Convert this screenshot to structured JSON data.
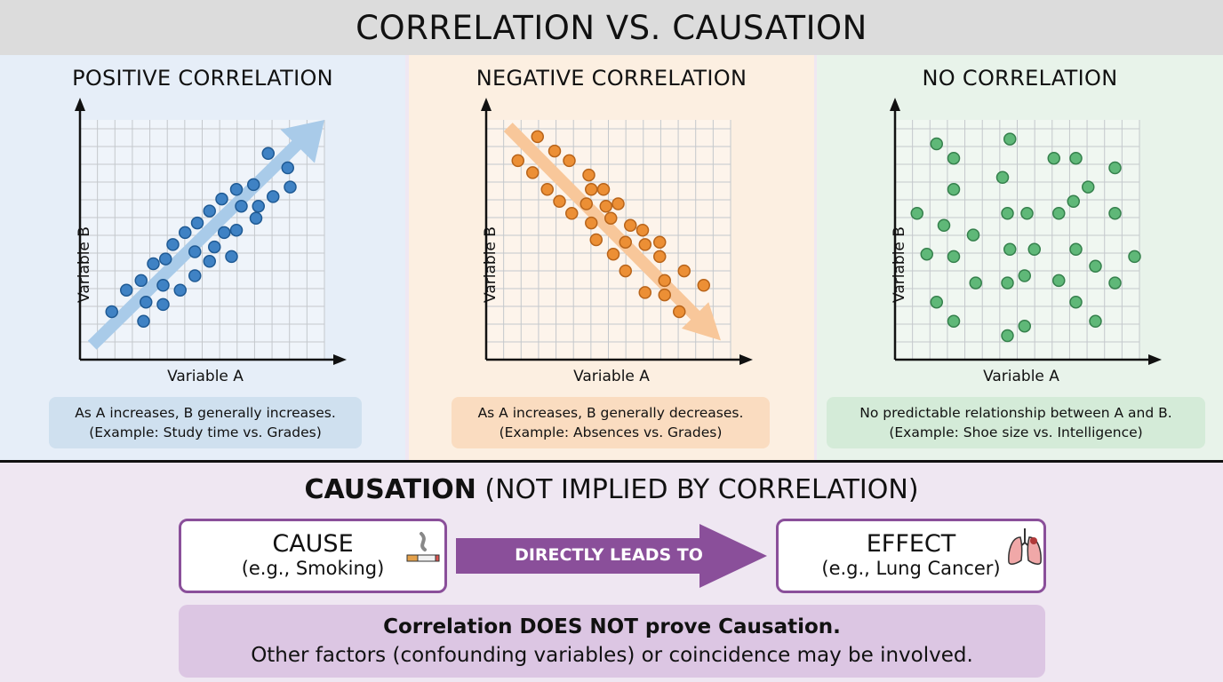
{
  "title": "CORRELATION VS. CAUSATION",
  "colors": {
    "positive": "#3f82c4",
    "negative": "#ec8f35",
    "none": "#5fb878",
    "purple": "#8a4f9a"
  },
  "chart_data": [
    {
      "type": "scatter",
      "title": "POSITIVE CORRELATION",
      "xlabel": "Variable A",
      "ylabel": "Variable B",
      "xlim": [
        0,
        10
      ],
      "ylim": [
        0,
        10
      ],
      "grid": true,
      "trend": "up",
      "points": [
        [
          1.3,
          2.0
        ],
        [
          1.9,
          2.9
        ],
        [
          2.5,
          3.3
        ],
        [
          2.7,
          2.4
        ],
        [
          2.6,
          1.6
        ],
        [
          3.0,
          4.0
        ],
        [
          3.4,
          3.1
        ],
        [
          3.4,
          2.3
        ],
        [
          3.5,
          4.2
        ],
        [
          3.8,
          4.8
        ],
        [
          4.1,
          2.9
        ],
        [
          4.3,
          5.3
        ],
        [
          4.7,
          3.5
        ],
        [
          4.8,
          5.7
        ],
        [
          4.7,
          4.5
        ],
        [
          5.3,
          6.2
        ],
        [
          5.3,
          4.1
        ],
        [
          5.5,
          4.7
        ],
        [
          5.8,
          6.7
        ],
        [
          5.9,
          5.3
        ],
        [
          6.4,
          7.1
        ],
        [
          6.4,
          5.4
        ],
        [
          6.6,
          6.4
        ],
        [
          7.1,
          7.3
        ],
        [
          7.3,
          6.4
        ],
        [
          7.2,
          5.9
        ],
        [
          7.7,
          8.6
        ],
        [
          7.9,
          6.8
        ],
        [
          8.5,
          8.0
        ],
        [
          8.6,
          7.2
        ],
        [
          6.2,
          4.3
        ]
      ],
      "caption": [
        "As A increases, B generally increases.",
        "(Example: Study time vs. Grades)"
      ]
    },
    {
      "type": "scatter",
      "title": "NEGATIVE CORRELATION",
      "xlabel": "Variable A",
      "ylabel": "Variable B",
      "xlim": [
        0,
        10
      ],
      "ylim": [
        0,
        10
      ],
      "grid": true,
      "trend": "down",
      "points": [
        [
          2.1,
          9.3
        ],
        [
          1.3,
          8.3
        ],
        [
          1.9,
          7.8
        ],
        [
          2.8,
          8.7
        ],
        [
          2.5,
          7.1
        ],
        [
          3.0,
          6.6
        ],
        [
          3.4,
          8.3
        ],
        [
          3.5,
          6.1
        ],
        [
          4.1,
          6.5
        ],
        [
          4.2,
          7.7
        ],
        [
          4.3,
          7.1
        ],
        [
          4.8,
          7.1
        ],
        [
          4.9,
          6.4
        ],
        [
          4.3,
          5.7
        ],
        [
          4.5,
          5.0
        ],
        [
          5.1,
          5.9
        ],
        [
          5.2,
          4.4
        ],
        [
          5.4,
          6.5
        ],
        [
          5.7,
          4.9
        ],
        [
          5.7,
          3.7
        ],
        [
          5.9,
          5.6
        ],
        [
          6.4,
          5.4
        ],
        [
          6.5,
          4.8
        ],
        [
          7.1,
          4.9
        ],
        [
          7.1,
          4.3
        ],
        [
          7.3,
          3.3
        ],
        [
          6.5,
          2.8
        ],
        [
          7.3,
          2.7
        ],
        [
          7.9,
          2.0
        ],
        [
          8.1,
          3.7
        ],
        [
          8.9,
          3.1
        ]
      ],
      "caption": [
        "As A increases, B generally decreases.",
        "(Example: Absences vs. Grades)"
      ]
    },
    {
      "type": "scatter",
      "title": "NO CORRELATION",
      "xlabel": "Variable A",
      "ylabel": "Variable B",
      "xlim": [
        0,
        10
      ],
      "ylim": [
        0,
        10
      ],
      "grid": true,
      "trend": "none",
      "points": [
        [
          1.7,
          9.0
        ],
        [
          2.4,
          8.4
        ],
        [
          4.7,
          9.2
        ],
        [
          6.5,
          8.4
        ],
        [
          7.4,
          8.4
        ],
        [
          9.0,
          8.0
        ],
        [
          2.4,
          7.1
        ],
        [
          4.4,
          7.6
        ],
        [
          7.9,
          7.2
        ],
        [
          7.3,
          6.6
        ],
        [
          0.9,
          6.1
        ],
        [
          2.0,
          5.6
        ],
        [
          4.6,
          6.1
        ],
        [
          5.4,
          6.1
        ],
        [
          6.7,
          6.1
        ],
        [
          9.0,
          6.1
        ],
        [
          3.2,
          5.2
        ],
        [
          1.3,
          4.4
        ],
        [
          2.4,
          4.3
        ],
        [
          4.7,
          4.6
        ],
        [
          5.7,
          4.6
        ],
        [
          7.4,
          4.6
        ],
        [
          8.2,
          3.9
        ],
        [
          9.8,
          4.3
        ],
        [
          5.3,
          3.5
        ],
        [
          3.3,
          3.2
        ],
        [
          4.6,
          3.2
        ],
        [
          6.7,
          3.3
        ],
        [
          9.0,
          3.2
        ],
        [
          1.7,
          2.4
        ],
        [
          7.4,
          2.4
        ],
        [
          2.4,
          1.6
        ],
        [
          5.3,
          1.4
        ],
        [
          4.6,
          1.0
        ],
        [
          8.2,
          1.6
        ]
      ],
      "caption": [
        "No predictable relationship between A and B.",
        "(Example: Shoe size vs. Intelligence)"
      ]
    }
  ],
  "causation": {
    "heading_bold": "CAUSATION",
    "heading_rest": " (NOT IMPLIED BY CORRELATION)",
    "cause_title": "CAUSE",
    "cause_example": "(e.g., Smoking)",
    "cause_icon": "cigarette-icon",
    "arrow_label": "DIRECTLY LEADS TO",
    "effect_title": "EFFECT",
    "effect_example": "(e.g., Lung Cancer)",
    "effect_icon": "lungs-icon",
    "note_bold": "Correlation DOES NOT prove Causation.",
    "note_text": "Other factors (confounding variables) or coincidence may be involved."
  }
}
